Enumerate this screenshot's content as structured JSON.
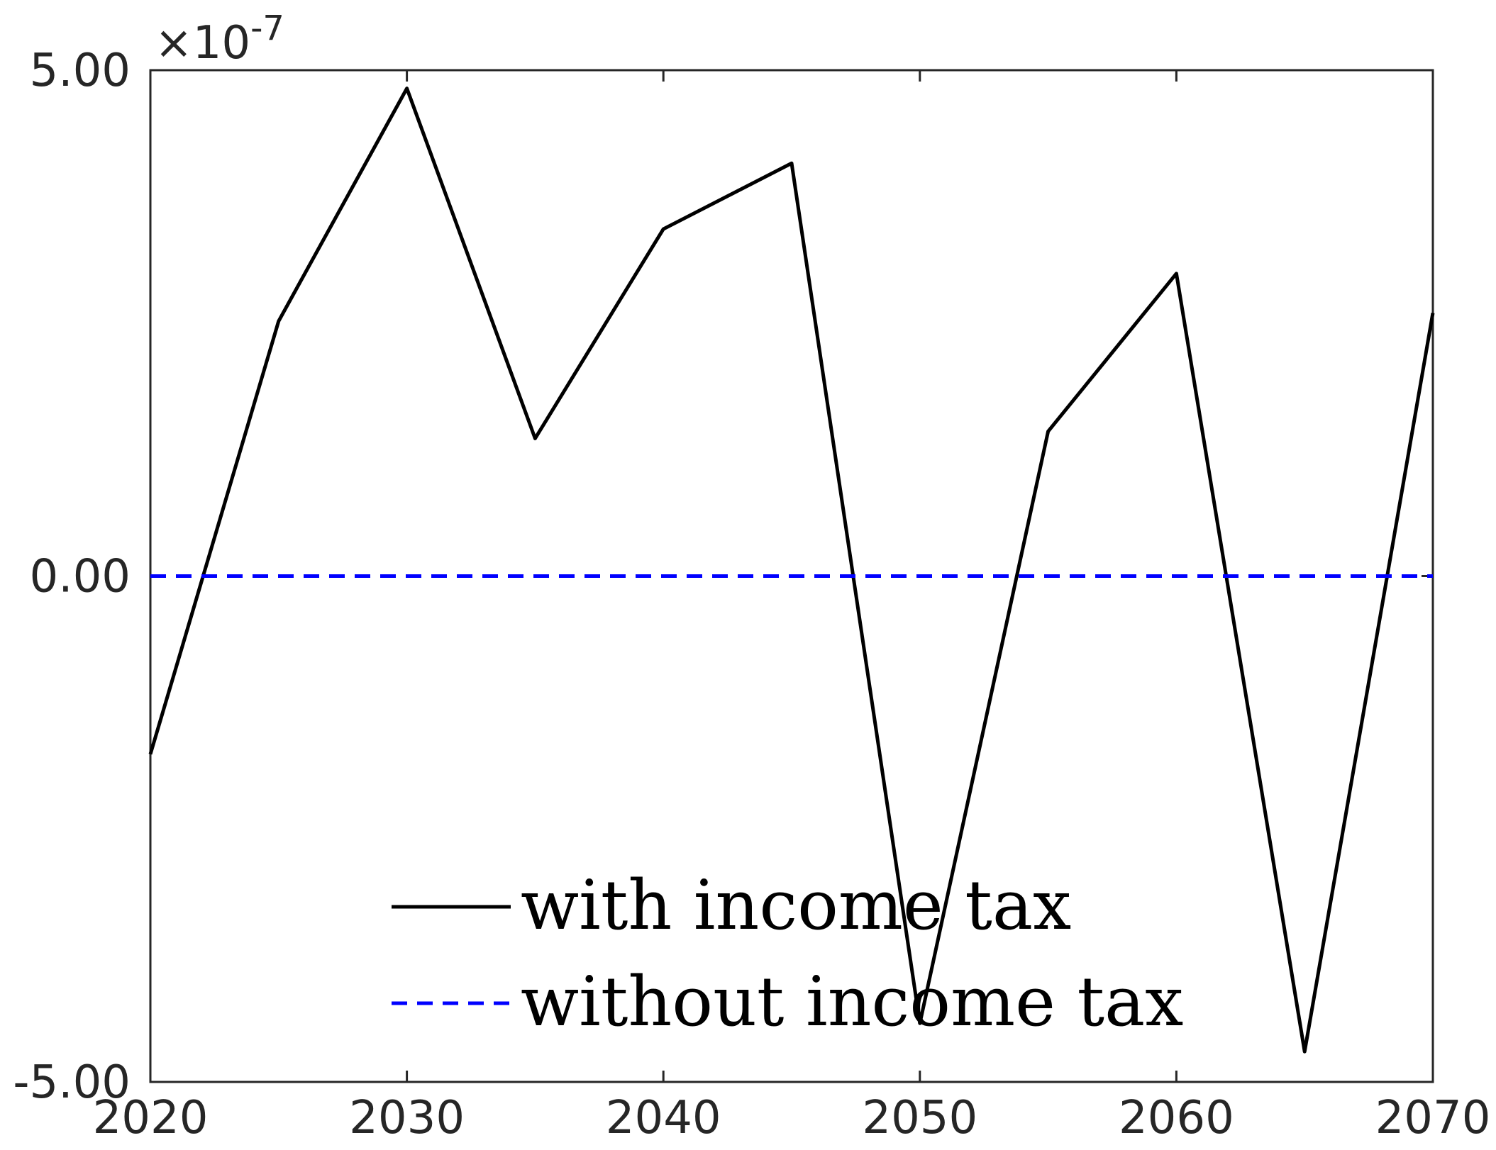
{
  "chart_data": {
    "type": "line",
    "title": "",
    "xlabel": "",
    "ylabel": "",
    "xlim": [
      2020,
      2070
    ],
    "ylim": [
      -5.0,
      5.0
    ],
    "y_scale_exponent_label": "×10",
    "y_scale_exponent_power": "-7",
    "x_ticks": [
      2020,
      2030,
      2040,
      2050,
      2060,
      2070
    ],
    "x_tick_labels": [
      "2020",
      "2030",
      "2040",
      "2050",
      "2060",
      "2070"
    ],
    "y_ticks": [
      -5,
      0,
      5
    ],
    "y_tick_labels": [
      "-5.00",
      "0.00",
      "5.00"
    ],
    "grid": false,
    "legend_position": "bottom-center",
    "series": [
      {
        "name": "with income tax",
        "color": "#000000",
        "style": "solid",
        "x": [
          2020,
          2025,
          2030,
          2035,
          2040,
          2045,
          2050,
          2055,
          2060,
          2065,
          2070
        ],
        "y": [
          -1.76,
          2.52,
          4.82,
          1.36,
          3.43,
          4.08,
          -4.42,
          1.43,
          2.99,
          -4.7,
          2.6
        ]
      },
      {
        "name": "without income tax",
        "color": "#0000ff",
        "style": "dashed",
        "x": [
          2020,
          2070
        ],
        "y": [
          0,
          0
        ]
      }
    ]
  }
}
